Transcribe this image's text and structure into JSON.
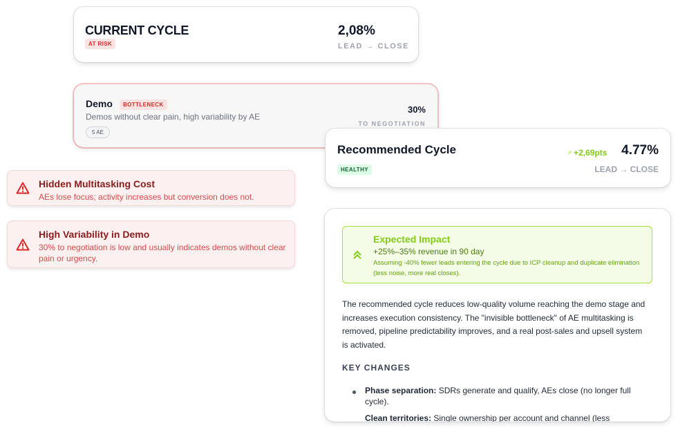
{
  "current_cycle": {
    "title": "CURRENT CYCLE",
    "badge": "AT RISK",
    "value": "2,08%",
    "label": "LEAD → CLOSE"
  },
  "demo": {
    "title": "Demo",
    "badge": "BOTTLENECK",
    "description": "Demos without clear pain, high variability by AE",
    "chip": "5 AE",
    "value": "30%",
    "label": "TO NEGOTIATION"
  },
  "recommended": {
    "title": "Recommended Cycle",
    "badge": "HEALTHY",
    "delta": "+2,69pts",
    "value": "4.77%",
    "label": "LEAD → CLOSE"
  },
  "warnings": [
    {
      "title": "Hidden Multitasking Cost",
      "description": "AEs lose focus; activity increases but conversion does not.",
      "icon": "warning-triangle-icon"
    },
    {
      "title": "High Variability in Demo",
      "description": "30% to negotiation is low and usually indicates demos without clear pain or urgency.",
      "icon": "warning-triangle-icon"
    }
  ],
  "impact": {
    "title": "Expected Impact",
    "headline": "+25%–35% revenue in 90 day",
    "note": "Assuming -40% fewer leads entering the cycle due to ICP cleanup and duplicate elimination (less noise, more real closes).",
    "icon": "double-chevron-up-icon"
  },
  "summary": "The recommended cycle reduces low-quality volume reaching the demo stage and increases execution consistency. The \"invisible bottleneck\" of AE multitasking is removed, pipeline predictability improves, and a real post-sales and upsell system is activated.",
  "key_changes": {
    "heading": "KEY CHANGES",
    "items": [
      {
        "label": "Phase separation:",
        "text": " SDRs generate and qualify, AEs close (no longer full cycle)."
      },
      {
        "label": "Clean territories:",
        "text": " Single ownership per account and channel (less"
      }
    ]
  },
  "colors": {
    "risk": "#dc2626",
    "healthy": "#84cc16",
    "text": "#111827"
  }
}
